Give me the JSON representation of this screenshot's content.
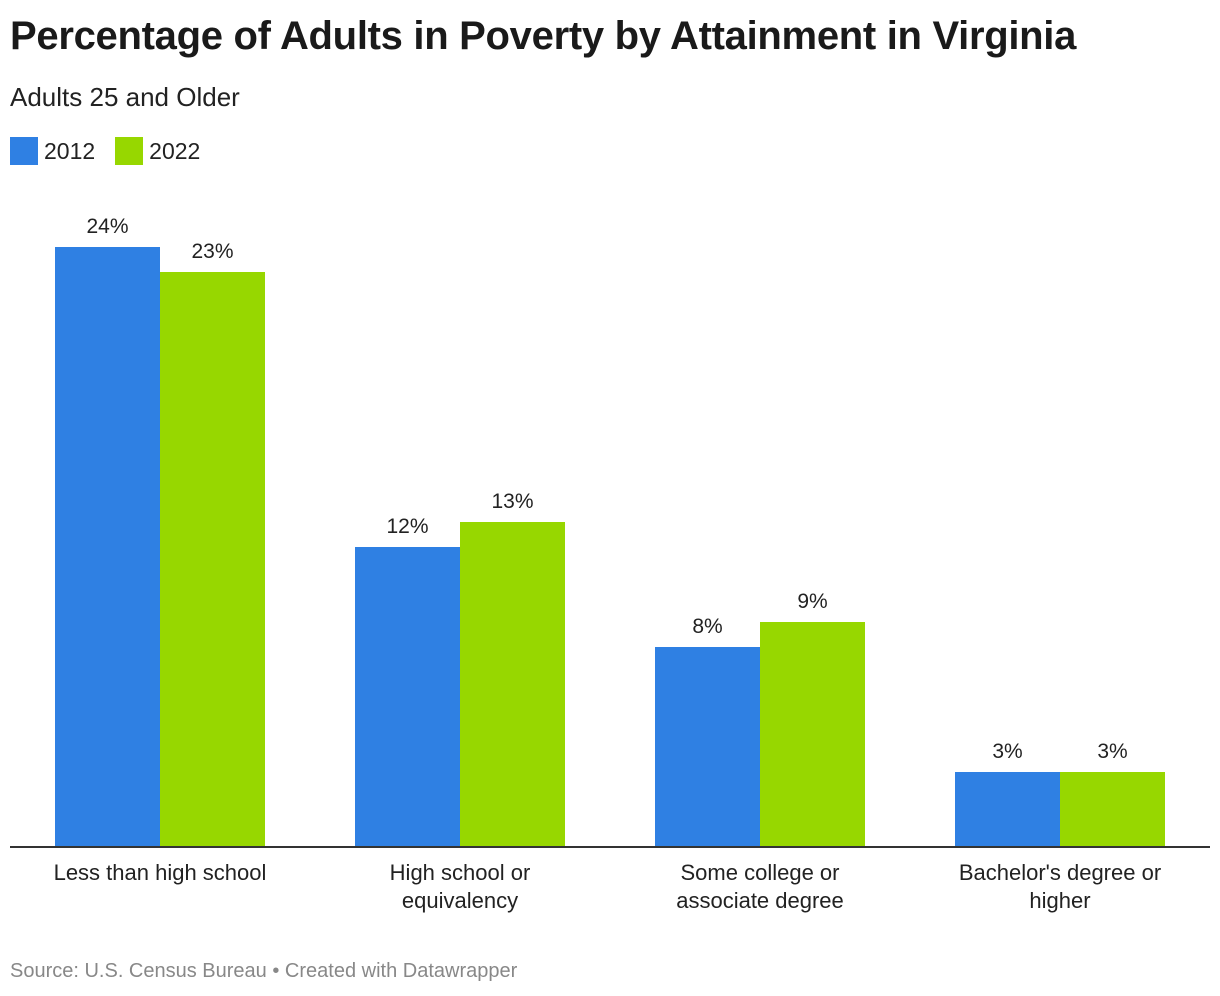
{
  "title": "Percentage of Adults in Poverty by Attainment in Virginia",
  "subtitle": "Adults 25 and Older",
  "legend": [
    {
      "label": "2012",
      "color": "#2f80e3"
    },
    {
      "label": "2022",
      "color": "#97d700"
    }
  ],
  "footer": {
    "source": "Source: U.S. Census Bureau",
    "separator": " • ",
    "credit": "Created with Datawrapper"
  },
  "chart_data": {
    "type": "bar",
    "categories": [
      [
        "Less than high school"
      ],
      [
        "High school or",
        "equivalency"
      ],
      [
        "Some college or",
        "associate degree"
      ],
      [
        "Bachelor's degree or",
        "higher"
      ]
    ],
    "series": [
      {
        "name": "2012",
        "color": "#2f80e3",
        "values": [
          24,
          12,
          8,
          3
        ],
        "labels": [
          "24%",
          "12%",
          "8%",
          "3%"
        ]
      },
      {
        "name": "2022",
        "color": "#97d700",
        "values": [
          23,
          13,
          9,
          3
        ],
        "labels": [
          "23%",
          "13%",
          "9%",
          "3%"
        ]
      }
    ],
    "ylim": [
      0,
      24
    ],
    "grid": false,
    "legend_position": "top-left"
  }
}
